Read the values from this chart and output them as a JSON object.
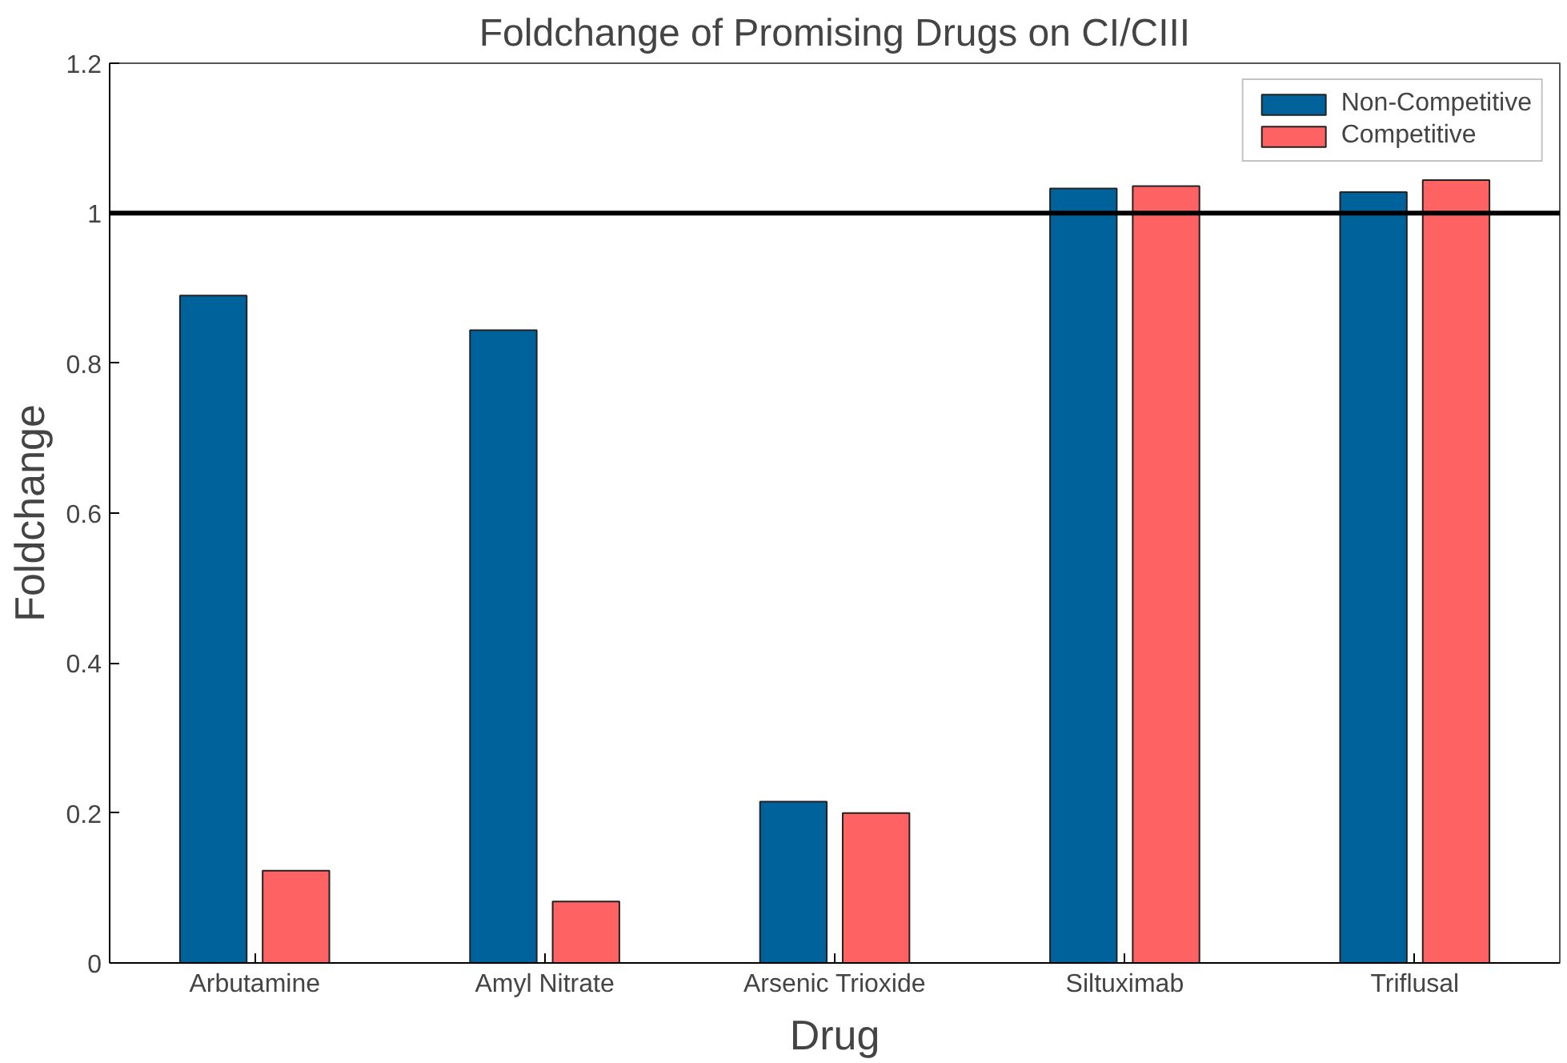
{
  "chart_data": {
    "type": "bar",
    "title": "Foldchange of Promising Drugs on CI/CIII",
    "xlabel": "Drug",
    "ylabel": "Foldchange",
    "categories": [
      "Arbutamine",
      "Amyl Nitrate",
      "Arsenic Trioxide",
      "Siltuximab",
      "Triflusal"
    ],
    "series": [
      {
        "name": "Non-Competitive",
        "color": "#00629b",
        "values": [
          0.89,
          0.844,
          0.215,
          1.033,
          1.028
        ]
      },
      {
        "name": "Competitive",
        "color": "#ff6262",
        "values": [
          0.123,
          0.082,
          0.2,
          1.036,
          1.044
        ]
      }
    ],
    "ylim": [
      0,
      1.2
    ],
    "yticks": [
      0,
      0.2,
      0.4,
      0.6,
      0.8,
      1,
      1.2
    ],
    "ref_lines": [
      {
        "axis": "y",
        "value": 1,
        "color": "#000000"
      }
    ],
    "legend": "top right",
    "grid": false
  }
}
